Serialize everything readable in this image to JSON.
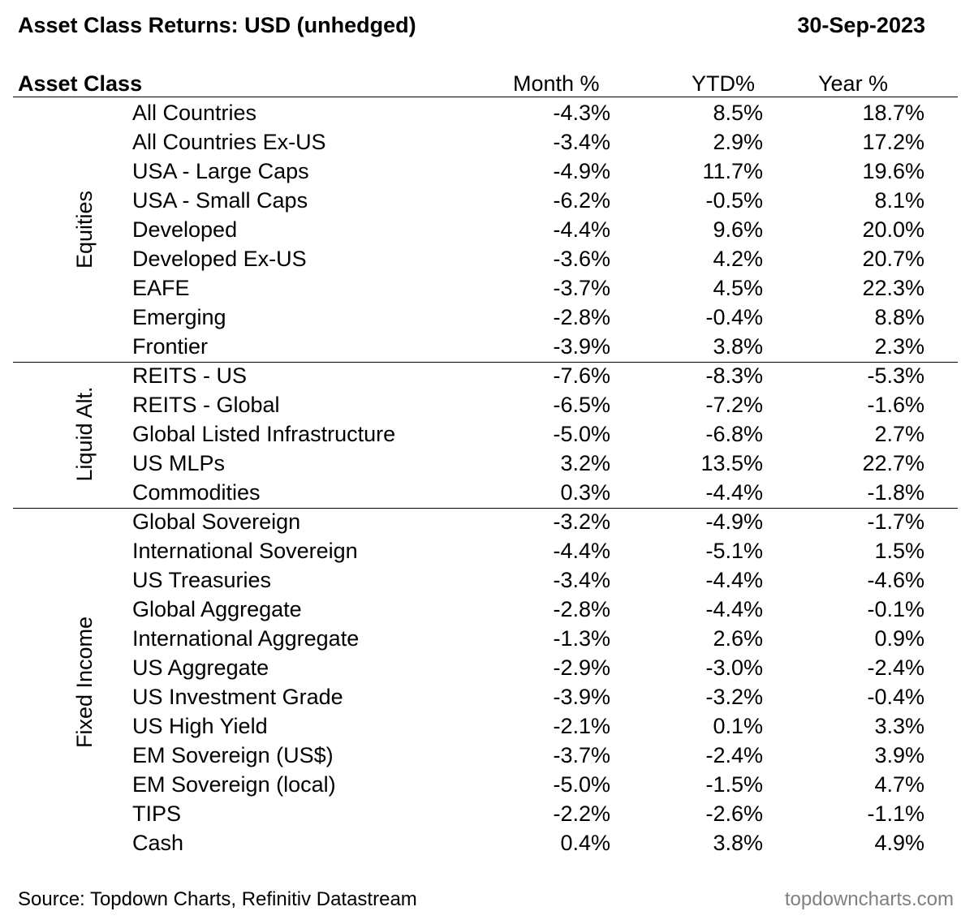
{
  "title": "Asset Class Returns: USD (unhedged)",
  "date": "30-Sep-2023",
  "source": "Source: Topdown Charts, Refinitiv Datastream",
  "brand": "topdowncharts.com",
  "colors": {
    "text": "#000000",
    "brand": "#808080",
    "rule": "#000000"
  },
  "chart_data": {
    "type": "table",
    "title": "Asset Class Returns: USD (unhedged)",
    "columns": [
      "Asset Class",
      "Month %",
      "YTD%",
      "Year %"
    ],
    "groups": [
      {
        "name": "Equities",
        "rows": [
          {
            "name": "All Countries",
            "month": "-4.3%",
            "ytd": "8.5%",
            "year": "18.7%"
          },
          {
            "name": "All Countries Ex-US",
            "month": "-3.4%",
            "ytd": "2.9%",
            "year": "17.2%"
          },
          {
            "name": "USA - Large Caps",
            "month": "-4.9%",
            "ytd": "11.7%",
            "year": "19.6%"
          },
          {
            "name": "USA - Small Caps",
            "month": "-6.2%",
            "ytd": "-0.5%",
            "year": "8.1%"
          },
          {
            "name": "Developed",
            "month": "-4.4%",
            "ytd": "9.6%",
            "year": "20.0%"
          },
          {
            "name": "Developed Ex-US",
            "month": "-3.6%",
            "ytd": "4.2%",
            "year": "20.7%"
          },
          {
            "name": "EAFE",
            "month": "-3.7%",
            "ytd": "4.5%",
            "year": "22.3%"
          },
          {
            "name": "Emerging",
            "month": "-2.8%",
            "ytd": "-0.4%",
            "year": "8.8%"
          },
          {
            "name": "Frontier",
            "month": "-3.9%",
            "ytd": "3.8%",
            "year": "2.3%"
          }
        ]
      },
      {
        "name": "Liquid Alt.",
        "rows": [
          {
            "name": "REITS - US",
            "month": "-7.6%",
            "ytd": "-8.3%",
            "year": "-5.3%"
          },
          {
            "name": "REITS - Global",
            "month": "-6.5%",
            "ytd": "-7.2%",
            "year": "-1.6%"
          },
          {
            "name": "Global Listed Infrastructure",
            "month": "-5.0%",
            "ytd": "-6.8%",
            "year": "2.7%"
          },
          {
            "name": "US MLPs",
            "month": "3.2%",
            "ytd": "13.5%",
            "year": "22.7%"
          },
          {
            "name": "Commodities",
            "month": "0.3%",
            "ytd": "-4.4%",
            "year": "-1.8%"
          }
        ]
      },
      {
        "name": "Fixed Income",
        "rows": [
          {
            "name": "Global Sovereign",
            "month": "-3.2%",
            "ytd": "-4.9%",
            "year": "-1.7%"
          },
          {
            "name": "International Sovereign",
            "month": "-4.4%",
            "ytd": "-5.1%",
            "year": "1.5%"
          },
          {
            "name": "US Treasuries",
            "month": "-3.4%",
            "ytd": "-4.4%",
            "year": "-4.6%"
          },
          {
            "name": "Global Aggregate",
            "month": "-2.8%",
            "ytd": "-4.4%",
            "year": "-0.1%"
          },
          {
            "name": "International Aggregate",
            "month": "-1.3%",
            "ytd": "2.6%",
            "year": "0.9%"
          },
          {
            "name": "US Aggregate",
            "month": "-2.9%",
            "ytd": "-3.0%",
            "year": "-2.4%"
          },
          {
            "name": "US Investment Grade",
            "month": "-3.9%",
            "ytd": "-3.2%",
            "year": "-0.4%"
          },
          {
            "name": "US High Yield",
            "month": "-2.1%",
            "ytd": "0.1%",
            "year": "3.3%"
          },
          {
            "name": "EM Sovereign (US$)",
            "month": "-3.7%",
            "ytd": "-2.4%",
            "year": "3.9%"
          },
          {
            "name": "EM Sovereign (local)",
            "month": "-5.0%",
            "ytd": "-1.5%",
            "year": "4.7%"
          },
          {
            "name": "TIPS",
            "month": "-2.2%",
            "ytd": "-2.6%",
            "year": "-1.1%"
          },
          {
            "name": "Cash",
            "month": "0.4%",
            "ytd": "3.8%",
            "year": "4.9%"
          }
        ]
      }
    ]
  }
}
